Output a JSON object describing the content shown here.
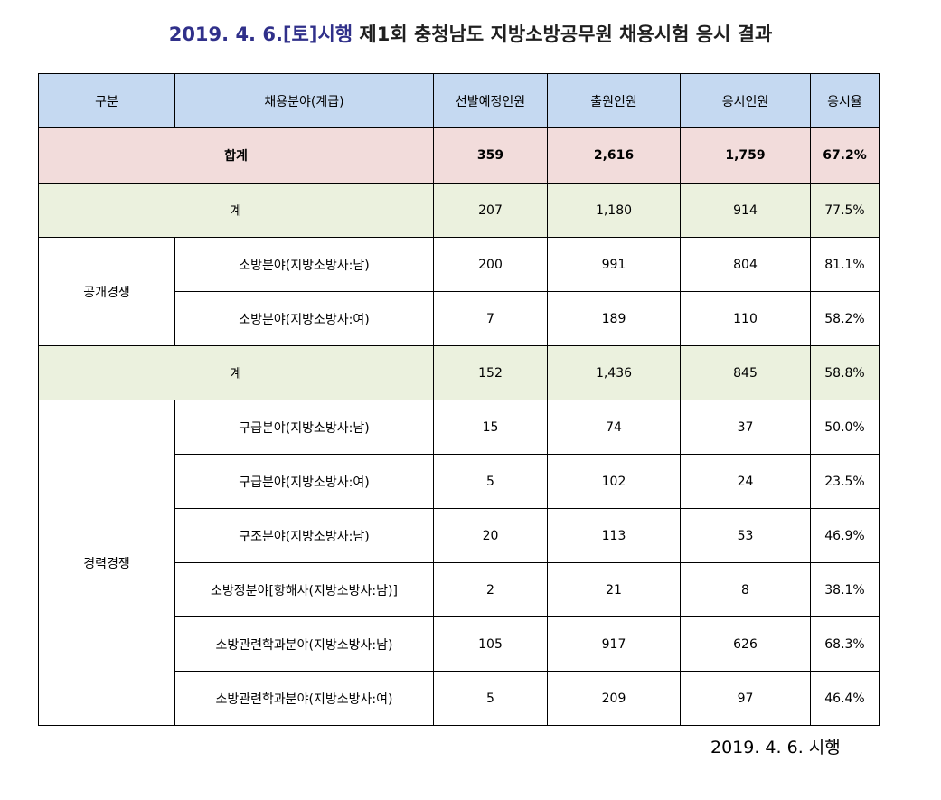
{
  "title": {
    "highlight": "2019. 4. 6.[토]시행",
    "rest": " 제1회 충청남도 지방소방공무원 채용시험 응시 결과"
  },
  "colors": {
    "header_bg": "#c5d9f1",
    "total_bg": "#f2dcdb",
    "subtotal_bg": "#ebf1de",
    "title_highlight": "#30308a"
  },
  "table": {
    "headers": [
      "구분",
      "채용분야(계급)",
      "선발예정인원",
      "출원인원",
      "응시인원",
      "응시율"
    ],
    "total": {
      "label": "합계",
      "planned": "359",
      "applied": "2,616",
      "taken": "1,759",
      "rate": "67.2%"
    },
    "open": {
      "group": "공개경쟁",
      "subtotal": {
        "label": "계",
        "planned": "207",
        "applied": "1,180",
        "taken": "914",
        "rate": "77.5%"
      },
      "rows": [
        {
          "field": "소방분야(지방소방사:남)",
          "planned": "200",
          "applied": "991",
          "taken": "804",
          "rate": "81.1%"
        },
        {
          "field": "소방분야(지방소방사:여)",
          "planned": "7",
          "applied": "189",
          "taken": "110",
          "rate": "58.2%"
        }
      ]
    },
    "career": {
      "group": "경력경쟁",
      "subtotal": {
        "label": "계",
        "planned": "152",
        "applied": "1,436",
        "taken": "845",
        "rate": "58.8%"
      },
      "rows": [
        {
          "field": "구급분야(지방소방사:남)",
          "planned": "15",
          "applied": "74",
          "taken": "37",
          "rate": "50.0%"
        },
        {
          "field": "구급분야(지방소방사:여)",
          "planned": "5",
          "applied": "102",
          "taken": "24",
          "rate": "23.5%"
        },
        {
          "field": "구조분야(지방소방사:남)",
          "planned": "20",
          "applied": "113",
          "taken": "53",
          "rate": "46.9%"
        },
        {
          "field": "소방정분야[항해사(지방소방사:남)]",
          "planned": "2",
          "applied": "21",
          "taken": "8",
          "rate": "38.1%"
        },
        {
          "field": "소방관련학과분야(지방소방사:남)",
          "planned": "105",
          "applied": "917",
          "taken": "626",
          "rate": "68.3%"
        },
        {
          "field": "소방관련학과분야(지방소방사:여)",
          "planned": "5",
          "applied": "209",
          "taken": "97",
          "rate": "46.4%"
        }
      ]
    }
  },
  "footnote": "2019. 4. 6. 시행"
}
